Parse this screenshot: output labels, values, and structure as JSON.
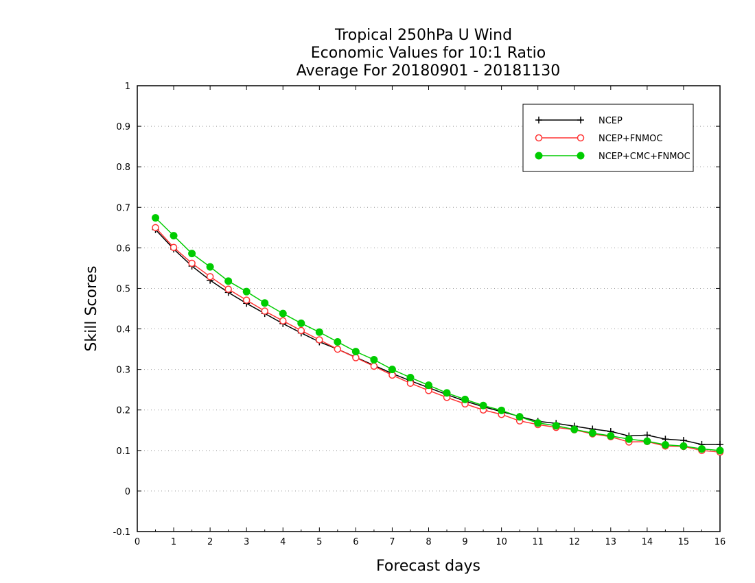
{
  "chart_data": {
    "type": "line",
    "title_lines": [
      "Tropical 250hPa U Wind",
      "Economic Values for 10:1 Ratio",
      "Average For 20180901 - 20181130"
    ],
    "xlabel": "Forecast days",
    "ylabel": "Skill Scores",
    "xlim": [
      0,
      16
    ],
    "ylim": [
      -0.1,
      1
    ],
    "xticks": [
      0,
      1,
      2,
      3,
      4,
      5,
      6,
      7,
      8,
      9,
      10,
      11,
      12,
      13,
      14,
      15,
      16
    ],
    "yticks": [
      -0.1,
      0,
      0.1,
      0.2,
      0.3,
      0.4,
      0.5,
      0.6,
      0.7,
      0.8,
      0.9,
      1
    ],
    "ytick_labels": [
      "-0.1",
      "0",
      "0.1",
      "0.2",
      "0.3",
      "0.4",
      "0.5",
      "0.6",
      "0.7",
      "0.8",
      "0.9",
      "1"
    ],
    "grid": "horizontal dotted",
    "legend_position": "top-right",
    "x": [
      0.5,
      1,
      1.5,
      2,
      2.5,
      3,
      3.5,
      4,
      4.5,
      5,
      5.5,
      6,
      6.5,
      7,
      7.5,
      8,
      8.5,
      9,
      9.5,
      10,
      10.5,
      11,
      11.5,
      12,
      12.5,
      13,
      13.5,
      14,
      14.5,
      15,
      15.5,
      16
    ],
    "series": [
      {
        "name": "NCEP",
        "color": "#000000",
        "marker": "plus",
        "values": [
          0.645,
          0.597,
          0.555,
          0.52,
          0.49,
          0.463,
          0.438,
          0.413,
          0.39,
          0.368,
          0.35,
          0.33,
          0.31,
          0.29,
          0.272,
          0.255,
          0.238,
          0.222,
          0.208,
          0.196,
          0.184,
          0.172,
          0.167,
          0.16,
          0.153,
          0.147,
          0.136,
          0.138,
          0.128,
          0.125,
          0.115,
          0.115
        ]
      },
      {
        "name": "NCEP+FNMOC",
        "color": "#ff3333",
        "marker": "open-circle",
        "values": [
          0.65,
          0.601,
          0.562,
          0.529,
          0.498,
          0.471,
          0.444,
          0.42,
          0.396,
          0.373,
          0.35,
          0.329,
          0.308,
          0.286,
          0.266,
          0.248,
          0.231,
          0.215,
          0.2,
          0.189,
          0.173,
          0.164,
          0.157,
          0.151,
          0.141,
          0.134,
          0.121,
          0.122,
          0.111,
          0.11,
          0.1,
          0.096
        ]
      },
      {
        "name": "NCEP+CMC+FNMOC",
        "color": "#00cc00",
        "marker": "filled-circle",
        "values": [
          0.674,
          0.63,
          0.586,
          0.553,
          0.518,
          0.492,
          0.464,
          0.438,
          0.414,
          0.392,
          0.368,
          0.344,
          0.324,
          0.3,
          0.28,
          0.261,
          0.242,
          0.226,
          0.211,
          0.199,
          0.183,
          0.168,
          0.161,
          0.152,
          0.143,
          0.136,
          0.128,
          0.123,
          0.114,
          0.111,
          0.104,
          0.1
        ]
      }
    ]
  }
}
